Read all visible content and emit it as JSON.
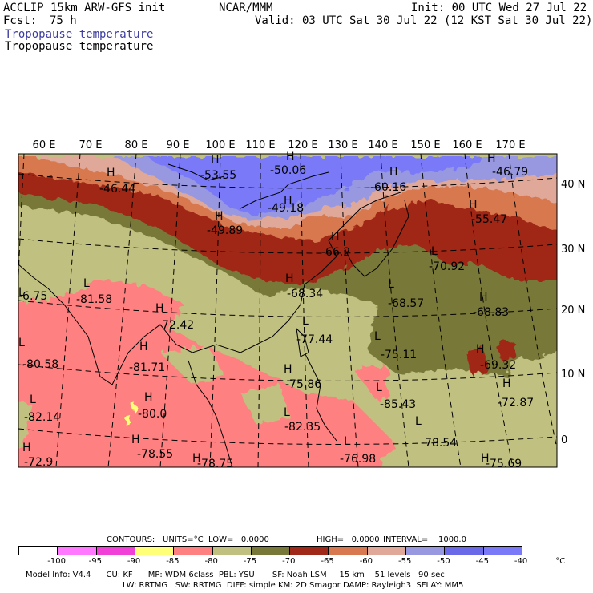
{
  "header": {
    "model": "ACCLIP 15km ARW-GFS init",
    "fcst_label": "Fcst:",
    "fcst_value": "75 h",
    "center": "NCAR/MMM",
    "init": "Init: 00 UTC Wed 27 Jul 22",
    "valid": "Valid: 03 UTC Sat 30 Jul 22 (12 KST Sat 30 Jul 22)",
    "field1": "Tropopause temperature",
    "field2": "Tropopause temperature"
  },
  "map": {
    "lon_labels": [
      "60 E",
      "70 E",
      "80 E",
      "90 E",
      "100 E",
      "110 E",
      "120 E",
      "130 E",
      "140 E",
      "150 E",
      "160 E",
      "170 E"
    ],
    "lat_labels": [
      "40 N",
      "30 N",
      "20 N",
      "10 N",
      "0"
    ],
    "highs_lows": [
      {
        "type": "H",
        "value": "-46.44"
      },
      {
        "type": "H",
        "value": "-53.55"
      },
      {
        "type": "H",
        "value": "-50.06"
      },
      {
        "type": "H",
        "value": "-49.18"
      },
      {
        "type": "H",
        "value": "-49.89"
      },
      {
        "type": "H",
        "value": "-46.79"
      },
      {
        "type": "H",
        "value": "-60.16"
      },
      {
        "type": "H",
        "value": "-55.47"
      },
      {
        "type": "H",
        "value": "-66.2"
      },
      {
        "type": "L",
        "value": "-70.92"
      },
      {
        "type": "H",
        "value": "-68.34"
      },
      {
        "type": "L",
        "value": "-68.57"
      },
      {
        "type": "H",
        "value": "-68.83"
      },
      {
        "type": "L",
        "value": "-81.58"
      },
      {
        "type": "L",
        "value": "-6.75"
      },
      {
        "type": "H",
        "value": "-72.42"
      },
      {
        "type": "L",
        "value": "-77.44"
      },
      {
        "type": "L",
        "value": "-75.11"
      },
      {
        "type": "H",
        "value": "-69.32"
      },
      {
        "type": "L",
        "value": "-80.58"
      },
      {
        "type": "H",
        "value": "-81.71"
      },
      {
        "type": "H",
        "value": "-75.86"
      },
      {
        "type": "L",
        "value": "-85.43"
      },
      {
        "type": "H",
        "value": "-72.87"
      },
      {
        "type": "L",
        "value": "-82.14"
      },
      {
        "type": "H",
        "value": "-80.0"
      },
      {
        "type": "L",
        "value": "-82.35"
      },
      {
        "type": "L",
        "value": "-78.54"
      },
      {
        "type": "H",
        "value": "-78.55"
      },
      {
        "type": "H",
        "value": "-78.75"
      },
      {
        "type": "L",
        "value": "-76.98"
      },
      {
        "type": "H",
        "value": "-75.69"
      },
      {
        "type": "H",
        "value": "-72.9"
      }
    ]
  },
  "contours": {
    "label": "CONTOURS:",
    "units": "UNITS=°C",
    "low": "LOW=   0.0000",
    "high": "HIGH=   0.0000",
    "interval": "INTERVAL=    1000.0"
  },
  "colorbar": {
    "labels": [
      "-100",
      "-95",
      "-90",
      "-85",
      "-80",
      "-75",
      "-70",
      "-65",
      "-60",
      "-55",
      "-50",
      "-45",
      "-40",
      "°C"
    ],
    "colors": [
      "#ffffff",
      "#ff78ff",
      "#f040d8",
      "#ffff78",
      "#ff8080",
      "#c0c080",
      "#787838",
      "#a02818",
      "#d87850",
      "#e0a898",
      "#9898e0",
      "#6a6ae8",
      "#7a7af8"
    ]
  },
  "footer": {
    "line1": "Model Info: V4.4      CU: KF      MP: WDM 6class  PBL: YSU       SF: Noah LSM     15 km    51 levels   90 sec",
    "line2": "LW: RRTMG   SW: RRTMG  DIFF: simple KM: 2D Smagor DAMP: Rayleigh3  SFLAY: MM5"
  }
}
